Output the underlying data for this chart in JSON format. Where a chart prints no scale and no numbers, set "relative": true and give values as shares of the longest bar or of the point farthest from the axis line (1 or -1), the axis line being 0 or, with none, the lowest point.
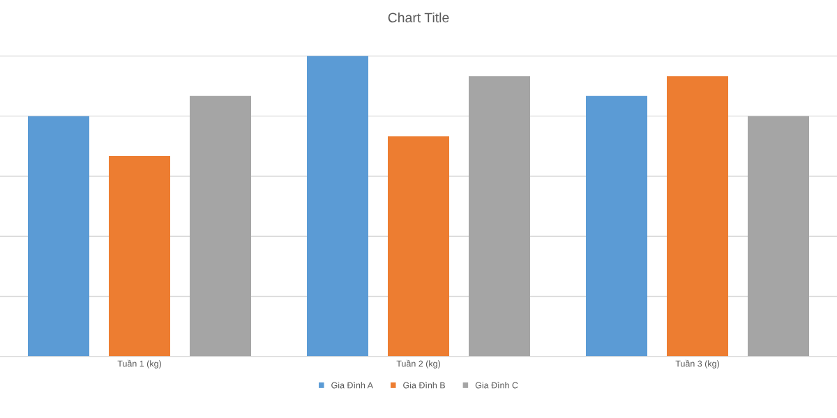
{
  "chart_data": {
    "type": "bar",
    "title": "Chart Title",
    "relative": true,
    "categories": [
      "Tuần 1 (kg)",
      "Tuần 2 (kg)",
      "Tuần 3 (kg)"
    ],
    "series": [
      {
        "name": "Gia Đình A",
        "color": "#5b9bd5",
        "values": [
          0.8,
          1,
          0.867
        ]
      },
      {
        "name": "Gia Đình B",
        "color": "#ed7d31",
        "values": [
          0.667,
          0.733,
          0.933
        ]
      },
      {
        "name": "Gia Đình C",
        "color": "#a5a5a5",
        "values": [
          0.867,
          0.933,
          0.8
        ]
      }
    ],
    "grid": "y",
    "legend": "bottom"
  }
}
